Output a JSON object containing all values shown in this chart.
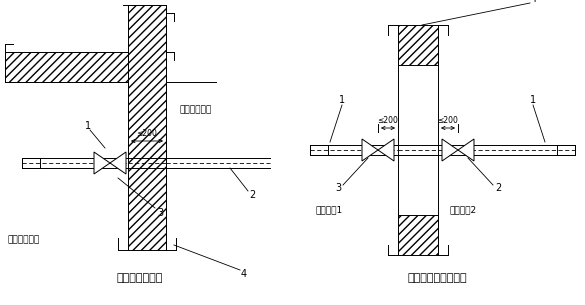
{
  "bg_color": "#ffffff",
  "title1": "管道从侧墙出入",
  "title2": "管道从相邻单元引入",
  "label1_left": "防空地下室内",
  "label1_right": "防空地下室外",
  "label2_left": "防护单元1",
  "label2_right": "防护单元2",
  "fig_width": 5.85,
  "fig_height": 3.05,
  "dpi": 100
}
